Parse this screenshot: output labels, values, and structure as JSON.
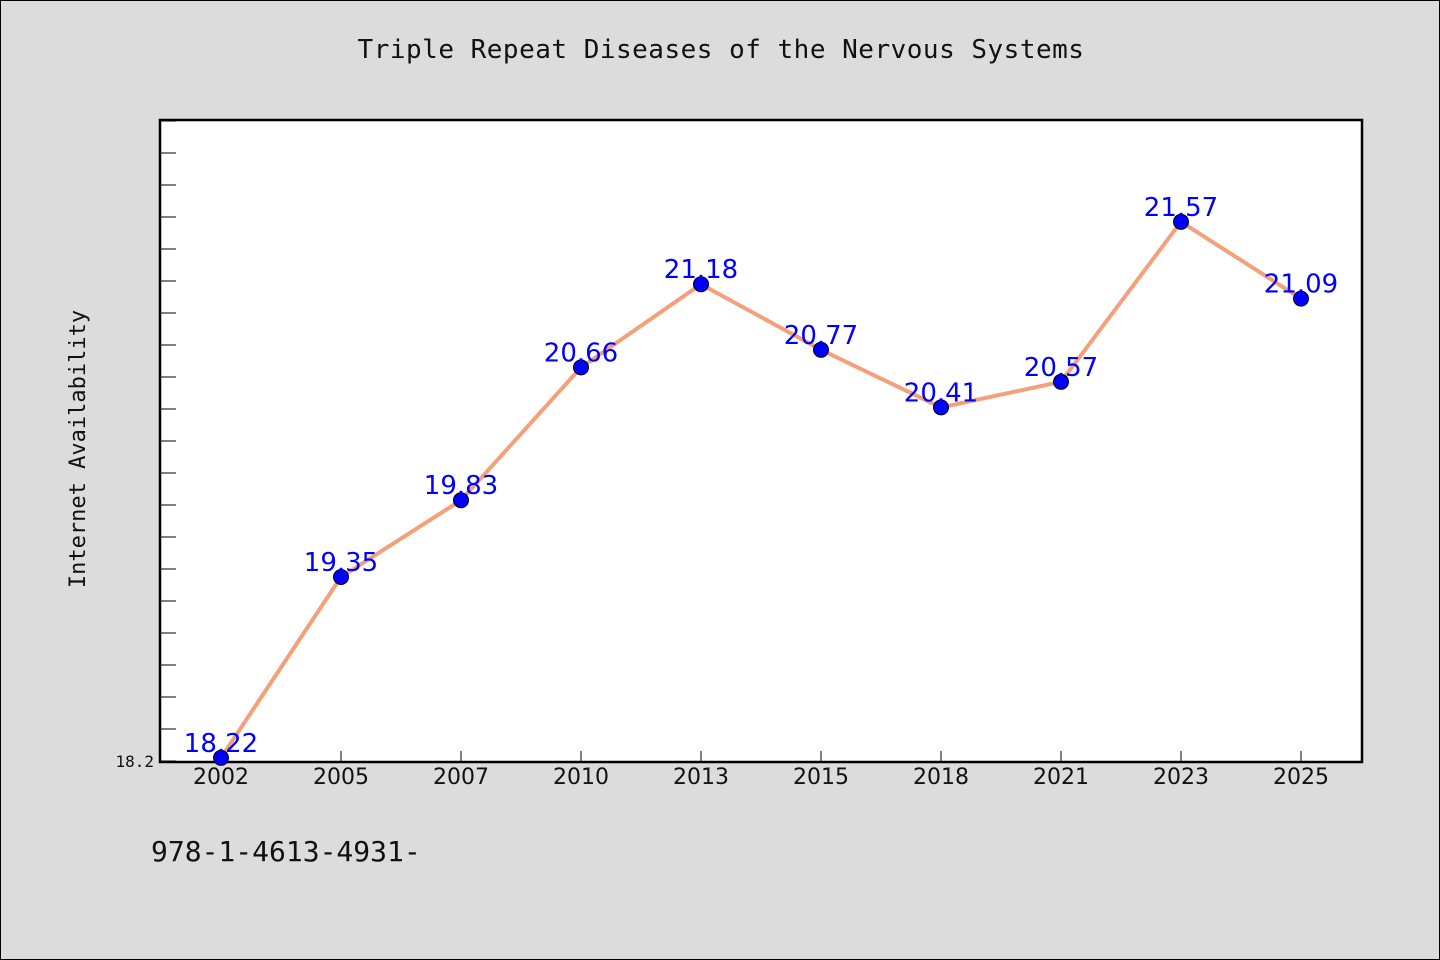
{
  "chart_data": {
    "type": "line",
    "title": "Triple Repeat Diseases of the Nervous Systems",
    "xlabel": "",
    "ylabel": "Internet Availability",
    "categories": [
      "2002",
      "2005",
      "2007",
      "2010",
      "2013",
      "2015",
      "2018",
      "2021",
      "2023",
      "2025"
    ],
    "series": [
      {
        "values": [
          18.22,
          19.35,
          19.83,
          20.66,
          21.18,
          20.77,
          20.41,
          20.57,
          21.57,
          21.09
        ]
      }
    ],
    "data_labels": [
      "18.22",
      "19.35",
      "19.83",
      "20.66",
      "21.18",
      "20.77",
      "20.41",
      "20.57",
      "21.57",
      "21.09"
    ],
    "y_tick_labels": [
      "18.2"
    ],
    "ylim": [
      18.2,
      22.2
    ],
    "grid": false,
    "colors": {
      "line": "#f4a07a",
      "marker": "#0000ff",
      "data_label": "#0000ff",
      "background": "#dcdcdc",
      "plot_background": "#ffffff"
    }
  },
  "footer": {
    "text": "978-1-4613-4931-"
  }
}
